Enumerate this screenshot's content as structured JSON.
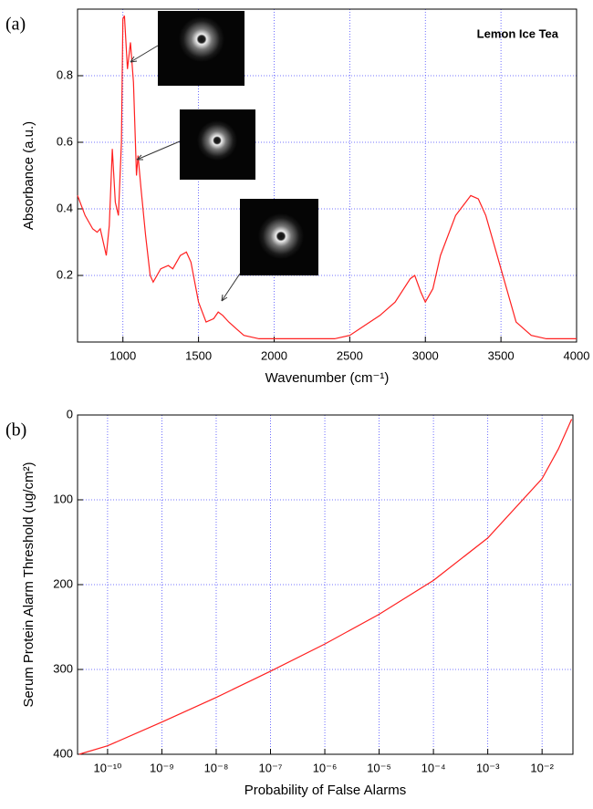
{
  "chart_data": [
    {
      "type": "line",
      "panel_label": "(a)",
      "annotation": "Lemon Ice Tea",
      "xlabel": "Wavenumber (cm⁻¹)",
      "ylabel": "Absorbance (a.u.)",
      "x": [
        700,
        750,
        800,
        830,
        850,
        870,
        890,
        910,
        930,
        950,
        970,
        990,
        1000,
        1010,
        1030,
        1050,
        1070,
        1090,
        1100,
        1120,
        1150,
        1180,
        1200,
        1250,
        1300,
        1330,
        1380,
        1420,
        1450,
        1500,
        1550,
        1600,
        1630,
        1660,
        1700,
        1750,
        1800,
        1900,
        2000,
        2200,
        2400,
        2500,
        2600,
        2700,
        2800,
        2900,
        2930,
        2970,
        3000,
        3050,
        3100,
        3200,
        3300,
        3350,
        3400,
        3500,
        3600,
        3700,
        3800,
        4000
      ],
      "values": [
        0.44,
        0.38,
        0.34,
        0.33,
        0.34,
        0.3,
        0.26,
        0.35,
        0.58,
        0.42,
        0.38,
        0.6,
        0.97,
        0.98,
        0.82,
        0.9,
        0.78,
        0.5,
        0.56,
        0.46,
        0.32,
        0.2,
        0.18,
        0.22,
        0.23,
        0.22,
        0.26,
        0.27,
        0.24,
        0.12,
        0.06,
        0.07,
        0.09,
        0.08,
        0.06,
        0.04,
        0.02,
        0.01,
        0.01,
        0.01,
        0.01,
        0.02,
        0.05,
        0.08,
        0.12,
        0.19,
        0.2,
        0.15,
        0.12,
        0.16,
        0.26,
        0.38,
        0.44,
        0.43,
        0.38,
        0.22,
        0.06,
        0.02,
        0.01,
        0.01
      ],
      "color": "#ff2020",
      "xlim": [
        700,
        4000
      ],
      "xticks": [
        1000,
        1500,
        2000,
        2500,
        3000,
        3500,
        4000
      ],
      "ylim": [
        0,
        1
      ],
      "yticks": [
        0.2,
        0.4,
        0.6,
        0.8
      ],
      "grid": true
    },
    {
      "type": "line",
      "panel_label": "(b)",
      "xlabel": "Probability of False Alarms",
      "ylabel": "Serum Protein Alarm Threshold (ug/cm²)",
      "xscale": "log",
      "x": [
        3e-11,
        1e-10,
        1e-09,
        1e-08,
        1e-07,
        1e-06,
        1e-05,
        0.0001,
        0.001,
        0.01,
        0.02,
        0.035
      ],
      "values": [
        400,
        390,
        362,
        333,
        302,
        270,
        235,
        195,
        145,
        75,
        40,
        5
      ],
      "color": "#ff2020",
      "xlim": [
        2.8e-11,
        0.037
      ],
      "xticks": [
        {
          "value": 1e-10,
          "label": "10⁻¹⁰"
        },
        {
          "value": 1e-09,
          "label": "10⁻⁹"
        },
        {
          "value": 1e-08,
          "label": "10⁻⁸"
        },
        {
          "value": 1e-07,
          "label": "10⁻⁷"
        },
        {
          "value": 1e-06,
          "label": "10⁻⁶"
        },
        {
          "value": 1e-05,
          "label": "10⁻⁵"
        },
        {
          "value": 0.0001,
          "label": "10⁻⁴"
        },
        {
          "value": 0.001,
          "label": "10⁻³"
        },
        {
          "value": 0.01,
          "label": "10⁻²"
        }
      ],
      "ylim": [
        400,
        0
      ],
      "yticks": [
        0,
        100,
        200,
        300,
        400
      ],
      "grid": true
    }
  ]
}
